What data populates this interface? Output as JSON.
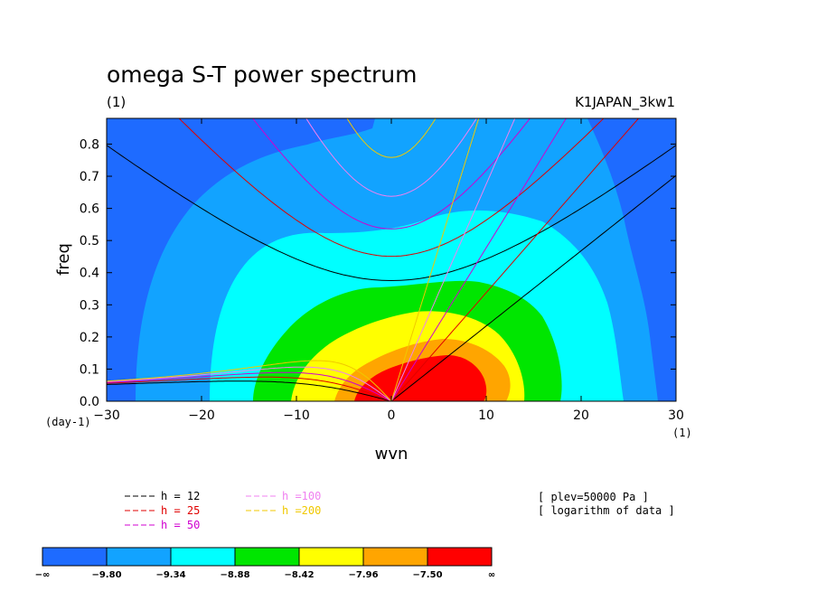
{
  "chart_data": {
    "type": "heatmap",
    "title": "omega S-T power spectrum",
    "subtitle_left": "(1)",
    "subtitle_right": "K1JAPAN_3kw1",
    "xlabel": "wvn",
    "ylabel": "freq",
    "x_unit": "(1)",
    "y_unit": "(day-1)",
    "xlim": [
      -30,
      30
    ],
    "ylim": [
      0,
      0.88
    ],
    "x_ticks": [
      {
        "v": -30,
        "label": "−30"
      },
      {
        "v": -20,
        "label": "−20"
      },
      {
        "v": -10,
        "label": "−10"
      },
      {
        "v": 0,
        "label": "0"
      },
      {
        "v": 10,
        "label": "10"
      },
      {
        "v": 20,
        "label": "20"
      },
      {
        "v": 30,
        "label": "30"
      }
    ],
    "y_ticks": [
      {
        "v": 0.0,
        "label": "0.0"
      },
      {
        "v": 0.1,
        "label": "0.1"
      },
      {
        "v": 0.2,
        "label": "0.2"
      },
      {
        "v": 0.3,
        "label": "0.3"
      },
      {
        "v": 0.4,
        "label": "0.4"
      },
      {
        "v": 0.5,
        "label": "0.5"
      },
      {
        "v": 0.6,
        "label": "0.6"
      },
      {
        "v": 0.7,
        "label": "0.7"
      },
      {
        "v": 0.8,
        "label": "0.8"
      }
    ],
    "contour_levels": [
      -9.8,
      -9.34,
      -8.88,
      -8.42,
      -7.96,
      -7.5
    ],
    "colorbar_labels": [
      "−∞",
      "−9.80",
      "−9.34",
      "−8.88",
      "−8.42",
      "−7.96",
      "−7.50",
      "∞"
    ],
    "colorbar_colors": [
      "#1e6bff",
      "#12a3ff",
      "#00ffff",
      "#00e600",
      "#ffff00",
      "#ffa500",
      "#ff0000"
    ],
    "dispersion_curves": [
      {
        "h": 12,
        "label": "h = 12",
        "color": "#000000"
      },
      {
        "h": 25,
        "label": "h = 25",
        "color": "#e00000"
      },
      {
        "h": 50,
        "label": "h = 50",
        "color": "#d000d0"
      },
      {
        "h": 100,
        "label": "h =100",
        "color": "#f080f0"
      },
      {
        "h": 200,
        "label": "h =200",
        "color": "#f0c800"
      }
    ],
    "annotations": [
      "[ plev=50000 Pa ]",
      "[ logarithm of data ]"
    ]
  }
}
